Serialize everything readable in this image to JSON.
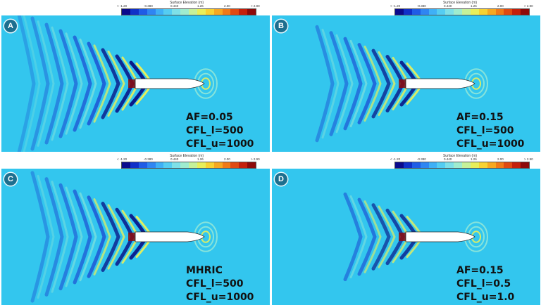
{
  "colorbar": {
    "title": "Surface Elevation (m)",
    "ticks": [
      "< -1.20",
      "-0.380",
      "0.440",
      "1.26",
      "2.00",
      "> 2.90"
    ],
    "colors": [
      "#0a0a8c",
      "#1030c8",
      "#1f5ce6",
      "#2f86f2",
      "#3fb0f6",
      "#55cdf2",
      "#7ee0e8",
      "#9feccf",
      "#c6f19a",
      "#e8ef5a",
      "#f7d232",
      "#f6a821",
      "#f07a18",
      "#e04a12",
      "#c4200c",
      "#8e0a0a"
    ]
  },
  "panels": [
    {
      "letter": "A",
      "lines": [
        "AF=0.05",
        "CFL_l=500",
        "CFL_u=1000"
      ]
    },
    {
      "letter": "B",
      "lines": [
        "AF=0.15",
        "CFL_l=500",
        "CFL_u=1000"
      ]
    },
    {
      "letter": "C",
      "lines": [
        "MHRIC",
        "CFL_l=500",
        "CFL_u=1000"
      ]
    },
    {
      "letter": "D",
      "lines": [
        "AF=0.15",
        "CFL_l=0.5",
        "CFL_u=1.0"
      ]
    }
  ],
  "palette": {
    "background": "#33c6ee",
    "trough": "#1a3fcf",
    "trough_deep": "#0a1a8a",
    "crest": "#8fe6d8",
    "crest_high": "#e8ef5a",
    "peak": "#8e0a0a",
    "hull": "#ffffff"
  }
}
